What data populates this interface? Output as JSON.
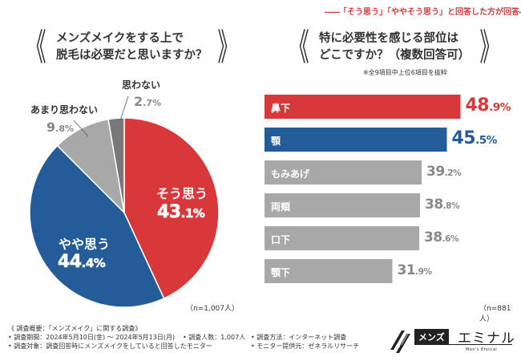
{
  "left_question": {
    "line1": "メンズメイクをする上で",
    "line2": "脱毛は必要だと思いますか？",
    "bracket_open": "《",
    "bracket_close": "》"
  },
  "right_question": {
    "line1": "特に必要性を感じる部位は",
    "line2": "どこですか？（複数回答可）",
    "bracket_open": "《",
    "bracket_close": "》",
    "top_note": "「そう思う」「ややそう思う」と回答した方が回答",
    "top_note_dash_left": "――",
    "top_note_dash_right": "――",
    "sub_note": "※全9項目中上位6項目を抜粋"
  },
  "chart_data": [
    {
      "type": "pie",
      "title": "メンズメイクをする上で脱毛は必要だと思いますか？",
      "slices": [
        {
          "name": "そう思う",
          "value": 43.1,
          "int": "43",
          "dec": ".1%",
          "color": "#d9383a"
        },
        {
          "name": "やや思う",
          "value": 44.4,
          "int": "44",
          "dec": ".4%",
          "color": "#235c99"
        },
        {
          "name": "あまり思わない",
          "value": 9.8,
          "int": "9",
          "dec": ".8%",
          "color": "#a8a8a8"
        },
        {
          "name": "思わない",
          "value": 2.7,
          "int": "2",
          "dec": ".7%",
          "color": "#787878"
        }
      ],
      "n_label": "（n=1,007人）"
    },
    {
      "type": "bar",
      "title": "特に必要性を感じる部位はどこですか？（複数回答可）",
      "categories": [
        "鼻下",
        "顎",
        "もみあげ",
        "両頬",
        "口下",
        "顎下"
      ],
      "values": [
        48.9,
        45.5,
        39.2,
        38.8,
        38.6,
        31.9
      ],
      "value_ints": [
        "48",
        "45",
        "39",
        "38",
        "38",
        "31"
      ],
      "value_decs": [
        ".9%",
        ".5%",
        ".2%",
        ".8%",
        ".6%",
        ".9%"
      ],
      "colors": [
        "#d9383a",
        "#235c99",
        "#a8a8a8",
        "#a8a8a8",
        "#a8a8a8",
        "#a8a8a8"
      ],
      "value_colors": [
        "#d9383a",
        "#235c99",
        "#888888",
        "#888888",
        "#888888",
        "#888888"
      ],
      "xlim": [
        0,
        60
      ],
      "n_label": "（n=881人）"
    }
  ],
  "footer": {
    "title": "《 調査概要：「メンズメイク」に関する調査》",
    "period": "• 調査期間：2024年5月10日(金) ～ 2024年5月13日(月)",
    "count": "• 調査人数：1,007人",
    "method": "• 調査方法：インターネット調査",
    "target": "• 調査対象：調査回答時にメンズメイクをしていると回答したモニター",
    "provider": "• モニター提供元：ゼネラルリサーチ"
  },
  "logo": {
    "box": "メンズ",
    "main": "エミナル",
    "sub": "Men's Eminal"
  },
  "colors": {
    "red": "#d9383a",
    "blue": "#235c99",
    "gray": "#a8a8a8",
    "darkgray": "#787878"
  }
}
